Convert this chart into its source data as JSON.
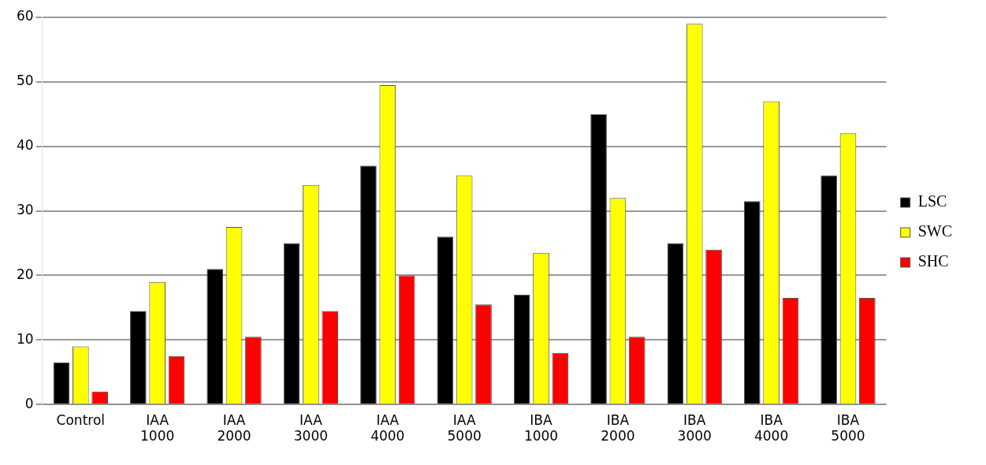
{
  "chart_data": {
    "type": "bar",
    "categories": [
      "Control",
      "IAA 1000",
      "IAA 2000",
      "IAA 3000",
      "IAA 4000",
      "IAA 5000",
      "IBA 1000",
      "IBA 2000",
      "IBA 3000",
      "IBA 4000",
      "IBA 5000"
    ],
    "series": [
      {
        "name": "LSC",
        "color": "#000000",
        "values": [
          6.5,
          14.5,
          21,
          25,
          37,
          26,
          17,
          45,
          25,
          31.5,
          35.5
        ]
      },
      {
        "name": "SWC",
        "color": "#ffff00",
        "values": [
          9,
          19,
          27.5,
          34,
          49.5,
          35.5,
          23.5,
          32,
          59,
          47,
          42
        ]
      },
      {
        "name": "SHC",
        "color": "#ff0000",
        "values": [
          2,
          7.5,
          10.5,
          14.5,
          20,
          15.5,
          8,
          10.5,
          24,
          16.5,
          16.5
        ]
      }
    ],
    "ylim": [
      0,
      60
    ],
    "yticks": [
      0,
      10,
      20,
      30,
      40,
      50,
      60
    ],
    "grid": "y",
    "legend": "right"
  }
}
